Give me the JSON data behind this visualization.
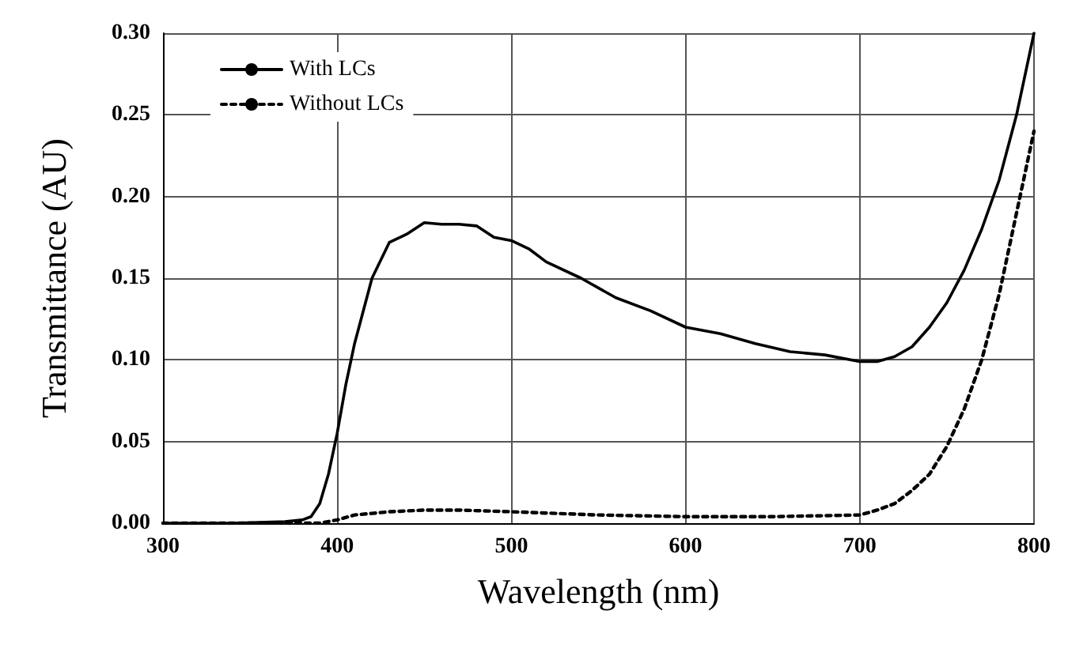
{
  "chart_data": {
    "type": "line",
    "xlabel": "Wavelength (nm)",
    "ylabel": "Transmittance (AU)",
    "xlim": [
      300,
      800
    ],
    "xticks": [
      300,
      400,
      500,
      600,
      700,
      800
    ],
    "ylim": [
      0,
      0.3
    ],
    "yticks": [
      {
        "value": 0,
        "label": "0.00"
      },
      {
        "value": 0.05,
        "label": "0.05"
      },
      {
        "value": 0.1,
        "label": "0.10"
      },
      {
        "value": 0.15,
        "label": "0.15"
      },
      {
        "value": 0.2,
        "label": "0.20"
      },
      {
        "value": 0.25,
        "label": "0.25"
      },
      {
        "value": 0.3,
        "label": "0.30"
      }
    ],
    "grid": true,
    "legend": "top left",
    "marker": "none",
    "series": [
      {
        "name": "With LCs",
        "color": "#000000",
        "line_style": "solid",
        "x": [
          300,
          340,
          370,
          380,
          385,
          390,
          395,
          400,
          405,
          410,
          420,
          430,
          440,
          450,
          460,
          470,
          480,
          490,
          500,
          510,
          520,
          540,
          560,
          580,
          600,
          620,
          640,
          660,
          680,
          700,
          710,
          720,
          730,
          740,
          750,
          760,
          770,
          780,
          790,
          800
        ],
        "values": [
          0,
          0,
          0.001,
          0.002,
          0.004,
          0.012,
          0.03,
          0.055,
          0.085,
          0.11,
          0.15,
          0.172,
          0.177,
          0.184,
          0.183,
          0.183,
          0.182,
          0.175,
          0.173,
          0.168,
          0.16,
          0.15,
          0.138,
          0.13,
          0.12,
          0.116,
          0.11,
          0.105,
          0.103,
          0.099,
          0.099,
          0.102,
          0.108,
          0.12,
          0.135,
          0.155,
          0.18,
          0.21,
          0.25,
          0.3
        ]
      },
      {
        "name": "Without LCs",
        "color": "#000000",
        "line_style": "dotted",
        "x": [
          300,
          390,
          400,
          410,
          420,
          430,
          450,
          470,
          500,
          550,
          600,
          650,
          700,
          710,
          720,
          730,
          740,
          750,
          760,
          770,
          780,
          790,
          800
        ],
        "values": [
          0,
          0,
          0.002,
          0.005,
          0.006,
          0.007,
          0.008,
          0.008,
          0.007,
          0.005,
          0.004,
          0.004,
          0.005,
          0.008,
          0.012,
          0.02,
          0.03,
          0.047,
          0.07,
          0.1,
          0.14,
          0.19,
          0.24
        ]
      }
    ]
  }
}
